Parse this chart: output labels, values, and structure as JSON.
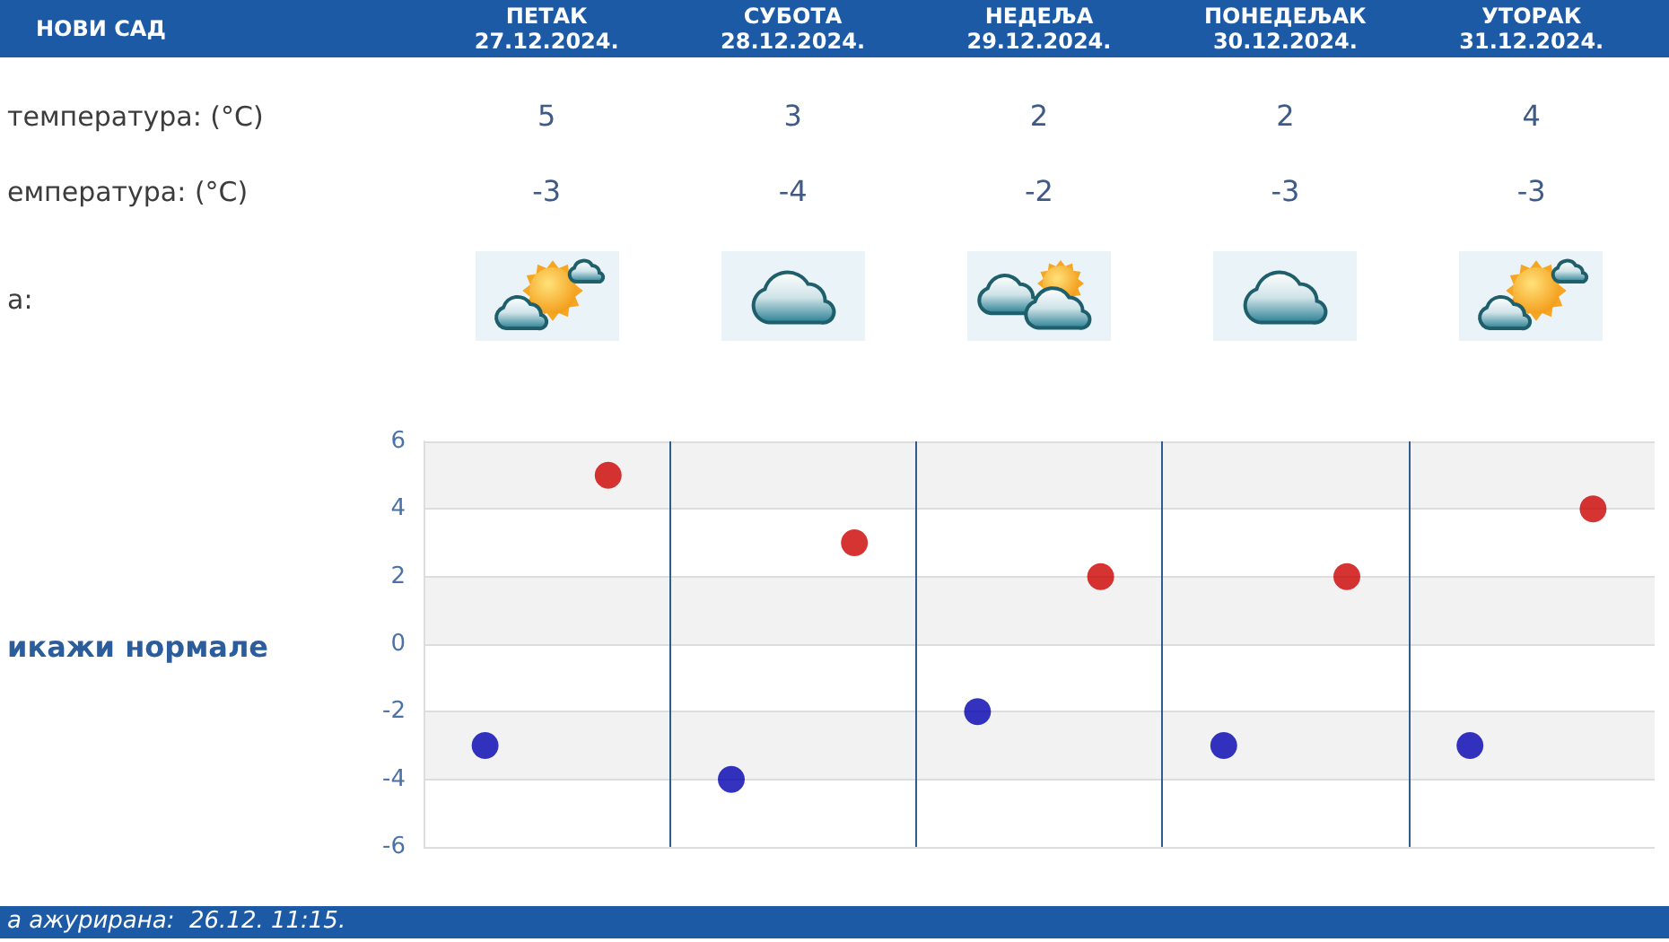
{
  "chart_data": {
    "type": "scatter",
    "title": "НОВИ САД",
    "categories": [
      null,
      null,
      null,
      null,
      null
    ],
    "series": [
      {
        "color": "#cc0000",
        "values": [
          5,
          3,
          2,
          2,
          4
        ]
      },
      {
        "color": "#0000b0",
        "values": [
          -3,
          -4,
          -2,
          -3,
          -3
        ]
      }
    ],
    "ylim": [
      -6,
      6
    ],
    "yticks": [
      -6,
      -4,
      -2,
      0,
      2,
      4,
      6
    ],
    "grid": true,
    "marker": "circle",
    "data_labels": true,
    "tick_labels": "y",
    "annotations": [
      "ПЕТАК\n27.12.2024.",
      "СУБОТА\n28.12.2024.",
      "НЕДЕЉА\n29.12.2024.",
      "ПОНЕДЕЉАК\n30.12.2024.",
      "УТОРАК\n31.12.2024.",
      "температура: (°C)",
      "емпература: (°C)",
      "а:",
      "икажи нормале",
      "а ажурирана:  26.12. 11:15."
    ]
  }
}
